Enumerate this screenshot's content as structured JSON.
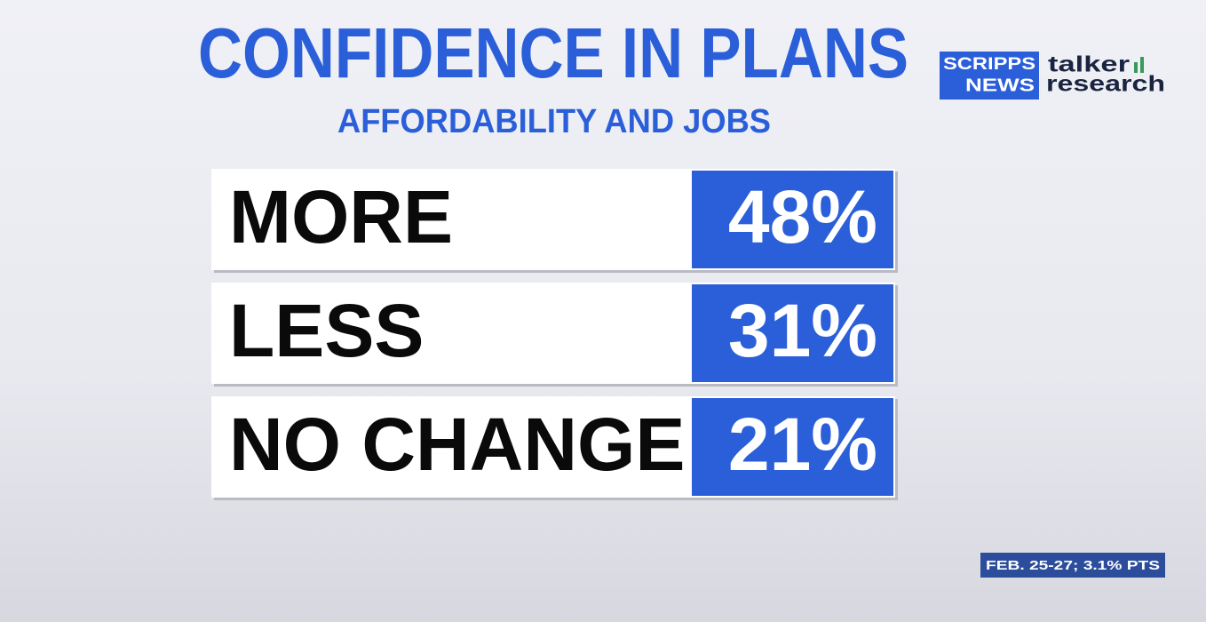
{
  "header": {
    "title": "CONFIDENCE IN PLANS",
    "subtitle": "AFFORDABILITY AND JOBS"
  },
  "logos": {
    "scripps_top": "SCRIPPS",
    "scripps_bottom": "NEWS",
    "talker_top": "talker",
    "talker_bottom": "research"
  },
  "table": {
    "rows": [
      [
        "MORE",
        "48%"
      ],
      [
        "LESS",
        "31%"
      ],
      [
        "NO CHANGE",
        "21%"
      ]
    ]
  },
  "footnote": "FEB. 25-27; 3.1% PTS"
}
